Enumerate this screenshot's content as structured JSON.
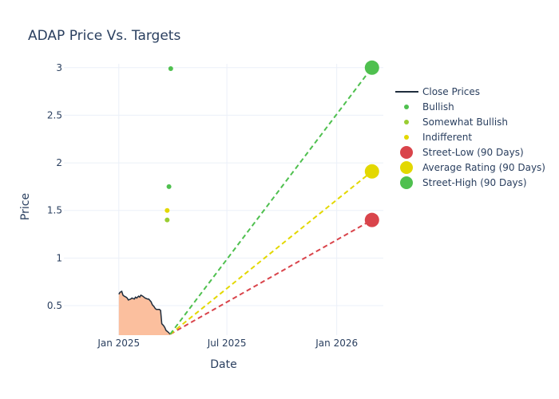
{
  "chart_data": {
    "type": "line",
    "title": "ADAP Price Vs. Targets",
    "xlabel": "Date",
    "ylabel": "Price",
    "x_ticks": [
      {
        "date": "2025-01-01",
        "label": "Jan 2025"
      },
      {
        "date": "2025-07-01",
        "label": "Jul 2025"
      },
      {
        "date": "2026-01-01",
        "label": "Jan 2026"
      }
    ],
    "y_ticks": [
      0.5,
      1,
      1.5,
      2,
      2.5,
      3
    ],
    "y_tick_labels": [
      "0.5",
      "1",
      "1.5",
      "2",
      "2.5",
      "3"
    ],
    "xlim": [
      "2024-10-01",
      "2026-03-20"
    ],
    "ylim": [
      0.19,
      3.04
    ],
    "grid": true,
    "legend_position": "right",
    "series": [
      {
        "name": "Close Prices",
        "kind": "line-filled",
        "color": "#1f2d3d",
        "fill_color": "#fbbf9e",
        "points": [
          [
            "2025-01-01",
            0.62
          ],
          [
            "2025-01-03",
            0.64
          ],
          [
            "2025-01-06",
            0.65
          ],
          [
            "2025-01-08",
            0.61
          ],
          [
            "2025-01-10",
            0.6
          ],
          [
            "2025-01-13",
            0.59
          ],
          [
            "2025-01-15",
            0.58
          ],
          [
            "2025-01-17",
            0.56
          ],
          [
            "2025-01-21",
            0.57
          ],
          [
            "2025-01-23",
            0.58
          ],
          [
            "2025-01-27",
            0.57
          ],
          [
            "2025-01-29",
            0.59
          ],
          [
            "2025-01-31",
            0.58
          ],
          [
            "2025-02-03",
            0.6
          ],
          [
            "2025-02-05",
            0.59
          ],
          [
            "2025-02-07",
            0.61
          ],
          [
            "2025-02-10",
            0.6
          ],
          [
            "2025-02-12",
            0.59
          ],
          [
            "2025-02-14",
            0.58
          ],
          [
            "2025-02-18",
            0.57
          ],
          [
            "2025-02-20",
            0.57
          ],
          [
            "2025-02-24",
            0.54
          ],
          [
            "2025-02-26",
            0.51
          ],
          [
            "2025-03-01",
            0.49
          ],
          [
            "2025-03-03",
            0.47
          ],
          [
            "2025-03-05",
            0.46
          ],
          [
            "2025-03-10",
            0.46
          ],
          [
            "2025-03-12",
            0.45
          ],
          [
            "2025-03-14",
            0.31
          ],
          [
            "2025-03-17",
            0.29
          ],
          [
            "2025-03-19",
            0.27
          ],
          [
            "2025-03-21",
            0.24
          ],
          [
            "2025-03-25",
            0.22
          ],
          [
            "2025-03-28",
            0.2
          ]
        ]
      },
      {
        "name": "Bullish",
        "kind": "markers",
        "color": "#4fc04f",
        "points": [
          [
            "2025-03-29",
            2.99
          ],
          [
            "2025-03-26",
            1.75
          ]
        ]
      },
      {
        "name": "Somewhat Bullish",
        "kind": "markers",
        "color": "#9acd32",
        "points": [
          [
            "2025-03-23",
            1.4
          ]
        ]
      },
      {
        "name": "Indifferent",
        "kind": "markers",
        "color": "#e3d800",
        "points": [
          [
            "2025-03-23",
            1.5
          ]
        ]
      },
      {
        "name": "Street-Low (90 Days)",
        "kind": "target",
        "color": "#d9444b",
        "start": [
          "2025-03-28",
          0.2
        ],
        "end": [
          "2026-03-01",
          1.4
        ]
      },
      {
        "name": "Average Rating (90 Days)",
        "kind": "target",
        "color": "#e3d800",
        "start": [
          "2025-03-28",
          0.2
        ],
        "end": [
          "2026-03-01",
          1.91
        ]
      },
      {
        "name": "Street-High (90 Days)",
        "kind": "target",
        "color": "#4fc04f",
        "start": [
          "2025-03-28",
          0.2
        ],
        "end": [
          "2026-03-01",
          3.0
        ]
      }
    ]
  }
}
